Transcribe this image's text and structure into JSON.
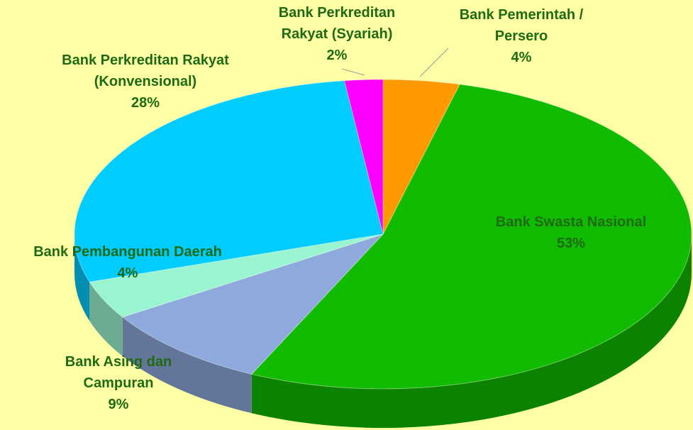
{
  "chart_data": {
    "type": "pie",
    "categories": [
      "Bank Pemerintah / Persero",
      "Bank Swasta Nasional",
      "Bank Asing dan Campuran",
      "Bank Pembangunan Daerah",
      "Bank Perkreditan Rakyat (Konvensional)",
      "Bank Perkreditan Rakyat (Syariah)"
    ],
    "values": [
      4,
      53,
      9,
      4,
      28,
      2
    ],
    "value_labels": [
      "4%",
      "53%",
      "9%",
      "4%",
      "28%",
      "2%"
    ],
    "colors": [
      "#ff9900",
      "#11bb00",
      "#8ea9db",
      "#99f5d0",
      "#00ccff",
      "#ff00ff"
    ]
  }
}
